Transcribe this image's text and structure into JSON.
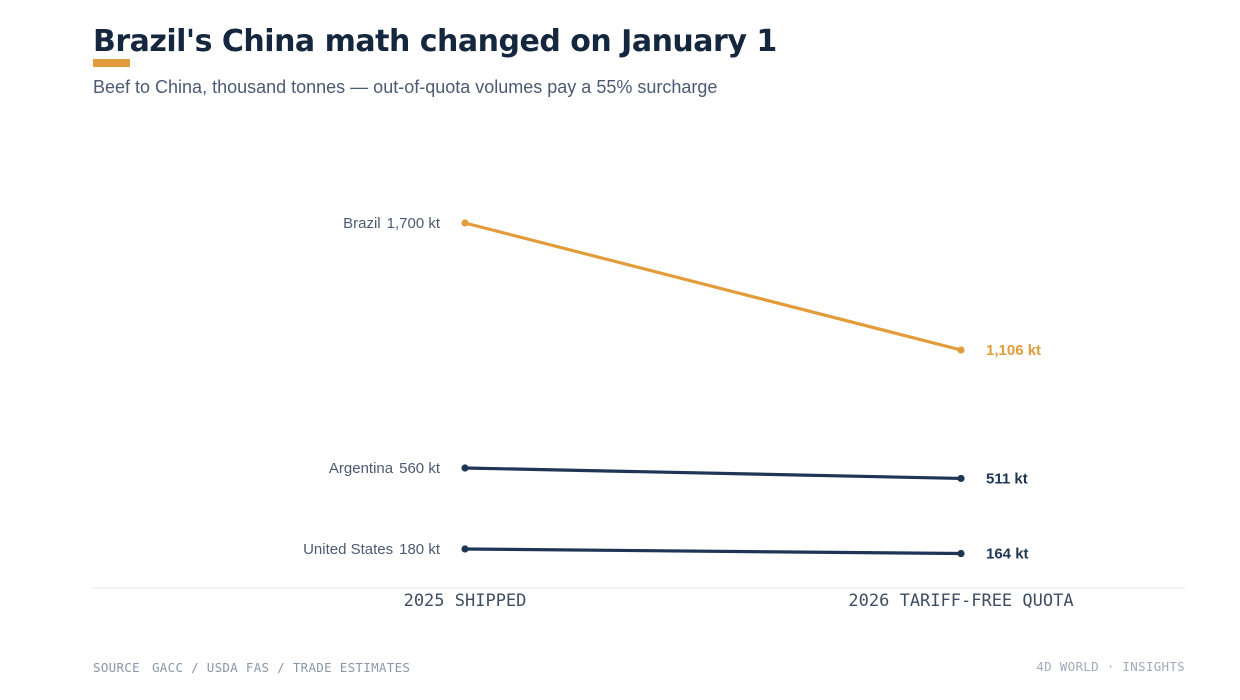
{
  "header": {
    "title": "Brazil's China math changed on January 1",
    "subtitle": "Beef to China, thousand tonnes — out-of-quota volumes pay a 55% surcharge"
  },
  "footer": {
    "source_label": "SOURCE",
    "source_text": "GACC / USDA FAS / TRADE ESTIMATES",
    "brand": "4D WORLD · INSIGHTS"
  },
  "colors": {
    "highlight": "#e29c3b",
    "base": "#1e3556",
    "axis_text": "#3e4e62",
    "label_text": "#4a5b72"
  },
  "chart_data": {
    "type": "line",
    "chart_style": "slope",
    "x": [
      "2025 SHIPPED",
      "2026 TARIFF-FREE QUOTA"
    ],
    "unit": "kt",
    "series": [
      {
        "name": "Brazil",
        "values": [
          1700,
          1106
        ],
        "start_label": "1,700 kt",
        "end_label": "1,106 kt",
        "highlight": true
      },
      {
        "name": "Argentina",
        "values": [
          560,
          511
        ],
        "start_label": "560 kt",
        "end_label": "511 kt",
        "highlight": false
      },
      {
        "name": "United States",
        "values": [
          180,
          164
        ],
        "start_label": "180 kt",
        "end_label": "164 kt",
        "highlight": false
      }
    ]
  }
}
